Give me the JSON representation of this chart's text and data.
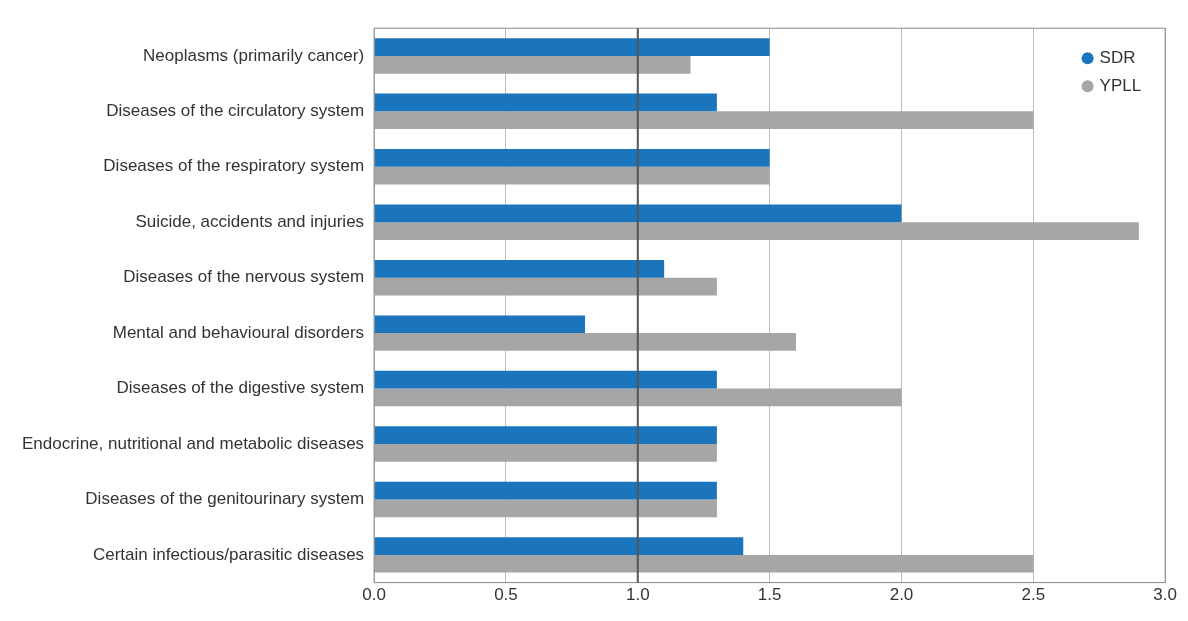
{
  "chart_data": {
    "type": "bar",
    "orientation": "horizontal",
    "categories": [
      "Neoplasms (primarily cancer)",
      "Diseases of the circulatory system",
      "Diseases of the respiratory system",
      "Suicide, accidents and injuries",
      "Diseases of the nervous system",
      "Mental and behavioural disorders",
      "Diseases of the digestive system",
      "Endocrine, nutritional and metabolic diseases",
      "Diseases of the genitourinary system",
      "Certain infectious/parasitic diseases"
    ],
    "series": [
      {
        "name": "SDR",
        "color": "#1a75bc",
        "values": [
          1.5,
          1.3,
          1.5,
          2.0,
          1.1,
          0.8,
          1.3,
          1.3,
          1.3,
          1.4
        ]
      },
      {
        "name": "YPLL",
        "color": "#a6a6a6",
        "values": [
          1.2,
          2.5,
          1.5,
          2.9,
          1.3,
          1.6,
          2.0,
          1.3,
          1.3,
          2.5
        ]
      }
    ],
    "xlim": [
      0,
      3
    ],
    "xticks": [
      {
        "value": 0,
        "label": "0.0"
      },
      {
        "value": 0.5,
        "label": "0.5"
      },
      {
        "value": 1,
        "label": "1.0"
      },
      {
        "value": 1.5,
        "label": "1.5"
      },
      {
        "value": 2,
        "label": "2.0"
      },
      {
        "value": 2.5,
        "label": "2.5"
      },
      {
        "value": 3,
        "label": "3.0"
      }
    ],
    "ref_lines": [
      {
        "axis": "x",
        "value": 1,
        "color": "#555555"
      }
    ],
    "grid": "x",
    "legend": "top right"
  }
}
